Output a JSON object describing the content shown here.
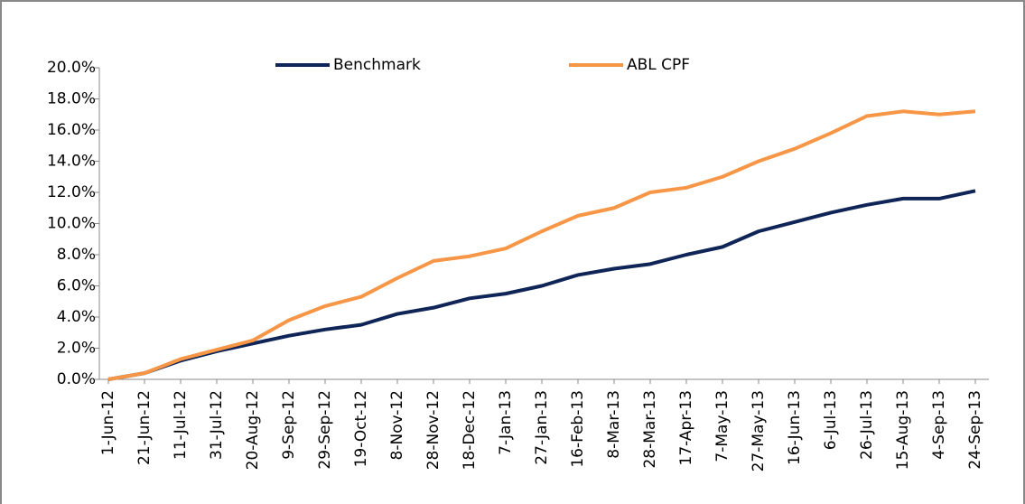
{
  "chart_data": {
    "type": "line",
    "categories": [
      "1-Jun-12",
      "21-Jun-12",
      "11-Jul-12",
      "31-Jul-12",
      "20-Aug-12",
      "9-Sep-12",
      "29-Sep-12",
      "19-Oct-12",
      "8-Nov-12",
      "28-Nov-12",
      "18-Dec-12",
      "7-Jan-13",
      "27-Jan-13",
      "16-Feb-13",
      "8-Mar-13",
      "28-Mar-13",
      "17-Apr-13",
      "7-May-13",
      "27-May-13",
      "16-Jun-13",
      "6-Jul-13",
      "26-Jul-13",
      "15-Aug-13",
      "4-Sep-13",
      "24-Sep-13"
    ],
    "series": [
      {
        "name": "Benchmark",
        "color": "#0f2557",
        "values": [
          0,
          0.4,
          1.2,
          1.8,
          2.3,
          2.8,
          3.2,
          3.5,
          4.2,
          4.6,
          5.2,
          5.5,
          6.0,
          6.7,
          7.1,
          7.4,
          8.0,
          8.5,
          9.5,
          10.1,
          10.7,
          11.2,
          11.6,
          11.6,
          12.1
        ]
      },
      {
        "name": "ABL CPF",
        "color": "#f79646",
        "values": [
          0,
          0.4,
          1.3,
          1.9,
          2.5,
          3.8,
          4.7,
          5.3,
          6.5,
          7.6,
          7.9,
          8.4,
          9.5,
          10.5,
          11.0,
          12.0,
          12.3,
          13.0,
          14.0,
          14.8,
          15.8,
          16.9,
          17.2,
          17.0,
          17.2
        ]
      }
    ],
    "ylim": [
      0,
      20
    ],
    "yticks": [
      {
        "value": 0,
        "label": "0.0%"
      },
      {
        "value": 2,
        "label": "2.0%"
      },
      {
        "value": 4,
        "label": "4.0%"
      },
      {
        "value": 6,
        "label": "6.0%"
      },
      {
        "value": 8,
        "label": "8.0%"
      },
      {
        "value": 10,
        "label": "10.0%"
      },
      {
        "value": 12,
        "label": "12.0%"
      },
      {
        "value": 14,
        "label": "14.0%"
      },
      {
        "value": 16,
        "label": "16.0%"
      },
      {
        "value": 18,
        "label": "18.0%"
      },
      {
        "value": 20,
        "label": "20.0%"
      }
    ],
    "legend": "top"
  }
}
